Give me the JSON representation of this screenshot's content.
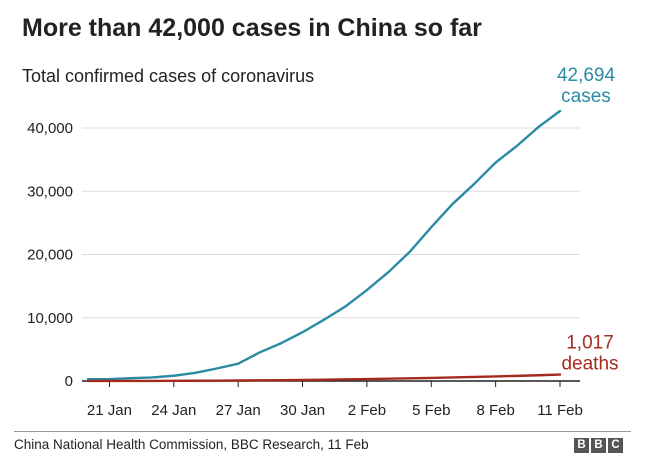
{
  "header": {
    "title": "More than 42,000 cases in China so far",
    "subtitle": "Total confirmed cases of coronavirus"
  },
  "footer": {
    "source": "China National Health Commission, BBC Research, 11 Feb",
    "logo": [
      "B",
      "B",
      "C"
    ]
  },
  "colors": {
    "cases": "#2b8aa4",
    "deaths": "#a52a1e",
    "grid": "#dddddd",
    "axis": "#222222"
  },
  "chart_data": {
    "type": "line",
    "title": "More than 42,000 cases in China so far",
    "subtitle": "Total confirmed cases of coronavirus",
    "xlabel": "",
    "ylabel": "",
    "ylim": [
      0,
      42694
    ],
    "yticks": [
      0,
      10000,
      20000,
      30000,
      40000
    ],
    "ytick_labels": [
      "0",
      "10,000",
      "20,000",
      "30,000",
      "40,000"
    ],
    "xtick_labels": [
      "21 Jan",
      "24 Jan",
      "27 Jan",
      "30 Jan",
      "2 Feb",
      "5 Feb",
      "8 Feb",
      "11 Feb"
    ],
    "xtick_positions": [
      1,
      4,
      7,
      10,
      13,
      16,
      19,
      22
    ],
    "x": [
      0,
      1,
      2,
      3,
      4,
      5,
      6,
      7,
      8,
      9,
      10,
      11,
      12,
      13,
      14,
      15,
      16,
      17,
      18,
      19,
      20,
      21,
      22
    ],
    "series": [
      {
        "name": "cases",
        "values": [
          278,
          309,
          440,
          571,
          830,
          1287,
          1975,
          2744,
          4515,
          5974,
          7711,
          9692,
          11791,
          14380,
          17205,
          20438,
          24324,
          28018,
          31161,
          34546,
          37198,
          40171,
          42694
        ],
        "end_label_value": "42,694",
        "end_label_unit": "cases"
      },
      {
        "name": "deaths",
        "values": [
          6,
          6,
          9,
          17,
          25,
          41,
          56,
          80,
          106,
          132,
          170,
          213,
          259,
          304,
          361,
          425,
          490,
          563,
          636,
          722,
          811,
          908,
          1017
        ],
        "end_label_value": "1,017",
        "end_label_unit": "deaths"
      }
    ]
  }
}
